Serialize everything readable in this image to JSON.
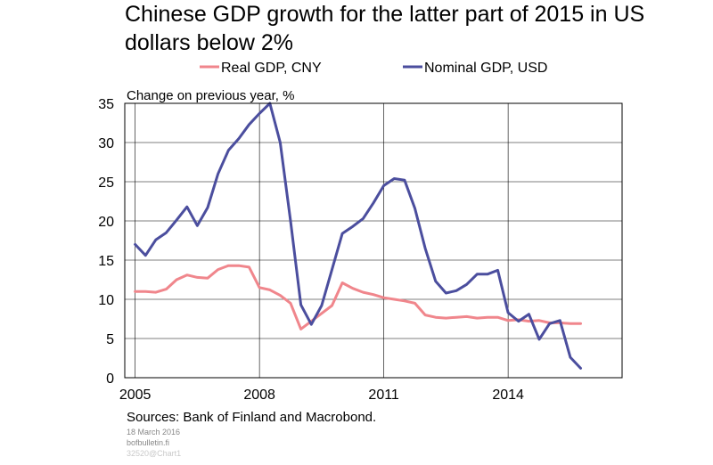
{
  "title_line1": "Chinese GDP growth for the latter part of 2015 in US",
  "title_line2": "dollars below 2%",
  "source": "Sources: Bank of Finland and Macrobond.",
  "footer": {
    "date": "18 March 2016",
    "site": "bofbulletin.fi",
    "chart_id": "32520@Chart1"
  },
  "chart_data": {
    "type": "line",
    "ylabel": "Change on previous year, %",
    "ylim": [
      0,
      35
    ],
    "yticks": [
      0,
      5,
      10,
      15,
      20,
      25,
      30,
      35
    ],
    "xlim": [
      2004.75,
      2016.75
    ],
    "xticks": [
      2005,
      2008,
      2011,
      2014
    ],
    "grid": true,
    "legend_position": "top",
    "series": [
      {
        "name": "Real GDP, CNY",
        "color": "#f0868c",
        "x": [
          2005.0,
          2005.25,
          2005.5,
          2005.75,
          2006.0,
          2006.25,
          2006.5,
          2006.75,
          2007.0,
          2007.25,
          2007.5,
          2007.75,
          2008.0,
          2008.25,
          2008.5,
          2008.75,
          2009.0,
          2009.25,
          2009.5,
          2009.75,
          2010.0,
          2010.25,
          2010.5,
          2010.75,
          2011.0,
          2011.25,
          2011.5,
          2011.75,
          2012.0,
          2012.25,
          2012.5,
          2012.75,
          2013.0,
          2013.25,
          2013.5,
          2013.75,
          2014.0,
          2014.25,
          2014.5,
          2014.75,
          2015.0,
          2015.25,
          2015.5,
          2015.75
        ],
        "values": [
          11.0,
          11.0,
          10.9,
          11.3,
          12.5,
          13.1,
          12.8,
          12.7,
          13.8,
          14.3,
          14.3,
          14.1,
          11.5,
          11.2,
          10.5,
          9.5,
          6.2,
          7.2,
          8.2,
          9.2,
          12.1,
          11.4,
          10.9,
          10.6,
          10.2,
          10.0,
          9.8,
          9.5,
          8.0,
          7.7,
          7.6,
          7.7,
          7.8,
          7.6,
          7.7,
          7.7,
          7.3,
          7.4,
          7.2,
          7.3,
          7.0,
          7.0,
          6.9,
          6.9
        ]
      },
      {
        "name": "Nominal GDP, USD",
        "color": "#4b4e9e",
        "x": [
          2005.0,
          2005.25,
          2005.5,
          2005.75,
          2006.0,
          2006.25,
          2006.5,
          2006.75,
          2007.0,
          2007.25,
          2007.5,
          2007.75,
          2008.0,
          2008.25,
          2008.5,
          2008.75,
          2009.0,
          2009.25,
          2009.5,
          2009.75,
          2010.0,
          2010.25,
          2010.5,
          2010.75,
          2011.0,
          2011.25,
          2011.5,
          2011.75,
          2012.0,
          2012.25,
          2012.5,
          2012.75,
          2013.0,
          2013.25,
          2013.5,
          2013.75,
          2014.0,
          2014.25,
          2014.5,
          2014.75,
          2015.0,
          2015.25,
          2015.5,
          2015.75
        ],
        "values": [
          17.0,
          15.6,
          17.6,
          18.5,
          20.1,
          21.8,
          19.4,
          21.7,
          26.0,
          29.0,
          30.5,
          32.3,
          33.7,
          35.0,
          30.0,
          20.0,
          9.3,
          6.8,
          9.2,
          13.8,
          18.4,
          19.3,
          20.3,
          22.3,
          24.5,
          25.4,
          25.2,
          21.6,
          16.5,
          12.3,
          10.8,
          11.1,
          11.9,
          13.2,
          13.2,
          13.7,
          8.3,
          7.2,
          8.1,
          4.9,
          6.9,
          7.3,
          2.6,
          1.2
        ]
      }
    ]
  }
}
